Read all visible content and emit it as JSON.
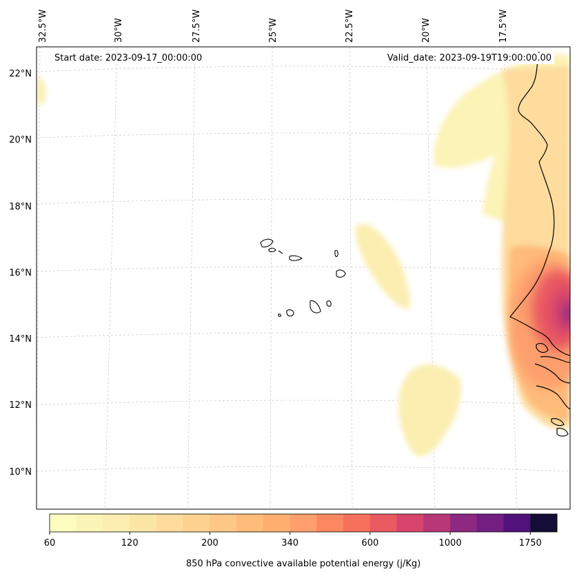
{
  "map": {
    "annotations": {
      "start_date": "Start date: 2023-09-17_00:00:00",
      "valid_date": "Valid_date: 2023-09-19T19:00:00.00"
    },
    "longitude_labels": [
      "32.5°W",
      "30°W",
      "27.5°W",
      "25°W",
      "22.5°W",
      "20°W",
      "17.5°W"
    ],
    "latitude_labels": [
      "22°N",
      "20°N",
      "18°N",
      "16°N",
      "14°N",
      "12°N",
      "10°N"
    ],
    "features": {
      "coastline": "West African coastline (Mauritania, Senegal, Gambia, Guinea-Bissau)",
      "islands": "Cape Verde islands"
    },
    "field": "850 hPa convective available potential energy"
  },
  "colorbar": {
    "label": "850 hPa convective available potential energy (j/Kg)",
    "tick_labels": [
      "60",
      "120",
      "200",
      "340",
      "600",
      "1000",
      "1750"
    ],
    "colors": [
      "#fcfdbf",
      "#fbf5b7",
      "#fbeeb0",
      "#fbe6a6",
      "#fddc9e",
      "#fdd190",
      "#fec785",
      "#febb7a",
      "#feaf6f",
      "#fe9f6d",
      "#fb8861",
      "#f7705c",
      "#ea5a61",
      "#d8456c",
      "#b73779",
      "#8c2981",
      "#721f81",
      "#51127c",
      "#140e36"
    ]
  }
}
